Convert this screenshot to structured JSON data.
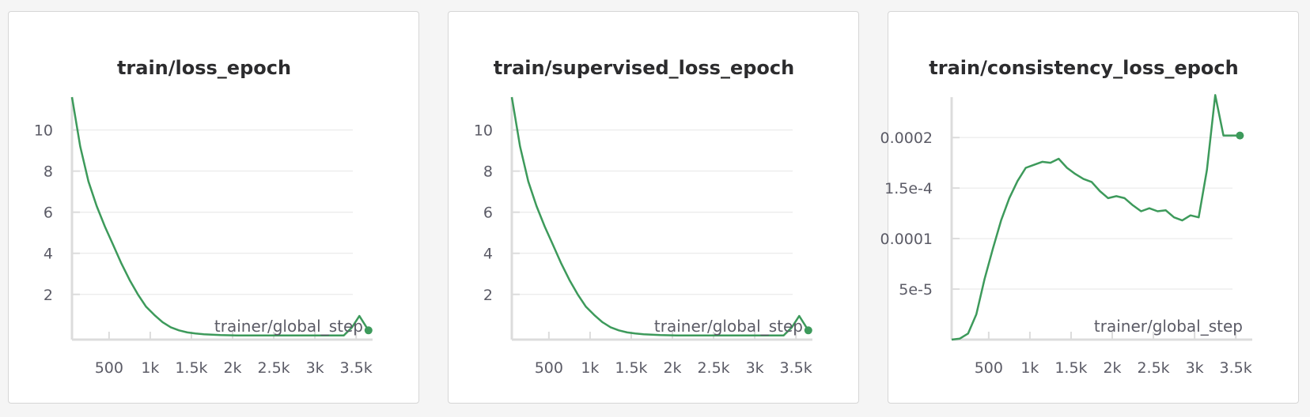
{
  "colors": {
    "series": "#3d9a5b"
  },
  "chart_data": [
    {
      "type": "line",
      "title": "train/loss_epoch",
      "xlabel": "trainer/global_step",
      "xlim": [
        50,
        3700
      ],
      "ylim": [
        -0.2,
        11.6
      ],
      "xticks": [
        500,
        1000,
        1500,
        2000,
        2500,
        3000,
        3500
      ],
      "xtick_labels": [
        "500",
        "1k",
        "1.5k",
        "2k",
        "2.5k",
        "3k",
        "3.5k"
      ],
      "yticks": [
        2,
        4,
        6,
        8,
        10
      ],
      "ytick_labels": [
        "2",
        "4",
        "6",
        "8",
        "10"
      ],
      "series": [
        {
          "x": [
            50,
            150,
            250,
            350,
            450,
            550,
            650,
            750,
            850,
            950,
            1050,
            1150,
            1250,
            1350,
            1450,
            1550,
            1650,
            1750,
            1850,
            1950,
            2050,
            2250,
            2450,
            2650,
            2850,
            3050,
            3250,
            3350,
            3450,
            3540,
            3650
          ],
          "y": [
            11.6,
            9.2,
            7.5,
            6.3,
            5.3,
            4.4,
            3.5,
            2.7,
            2.0,
            1.4,
            1.0,
            0.65,
            0.4,
            0.25,
            0.15,
            0.1,
            0.06,
            0.04,
            0.02,
            0.01,
            0.0,
            0.0,
            0.0,
            0.0,
            0.0,
            0.0,
            0.0,
            0.0,
            0.4,
            0.95,
            0.25
          ]
        }
      ]
    },
    {
      "type": "line",
      "title": "train/supervised_loss_epoch",
      "xlabel": "trainer/global_step",
      "xlim": [
        50,
        3700
      ],
      "ylim": [
        -0.2,
        11.6
      ],
      "xticks": [
        500,
        1000,
        1500,
        2000,
        2500,
        3000,
        3500
      ],
      "xtick_labels": [
        "500",
        "1k",
        "1.5k",
        "2k",
        "2.5k",
        "3k",
        "3.5k"
      ],
      "yticks": [
        2,
        4,
        6,
        8,
        10
      ],
      "ytick_labels": [
        "2",
        "4",
        "6",
        "8",
        "10"
      ],
      "series": [
        {
          "x": [
            50,
            150,
            250,
            350,
            450,
            550,
            650,
            750,
            850,
            950,
            1050,
            1150,
            1250,
            1350,
            1450,
            1550,
            1650,
            1750,
            1850,
            1950,
            2050,
            2250,
            2450,
            2650,
            2850,
            3050,
            3250,
            3350,
            3450,
            3540,
            3650
          ],
          "y": [
            11.6,
            9.2,
            7.5,
            6.3,
            5.3,
            4.4,
            3.5,
            2.7,
            2.0,
            1.4,
            1.0,
            0.65,
            0.4,
            0.25,
            0.15,
            0.1,
            0.06,
            0.04,
            0.02,
            0.01,
            0.0,
            0.0,
            0.0,
            0.0,
            0.0,
            0.0,
            0.0,
            0.0,
            0.4,
            0.95,
            0.25
          ]
        }
      ]
    },
    {
      "type": "line",
      "title": "train/consistency_loss_epoch",
      "xlabel": "trainer/global_step",
      "xlim": [
        50,
        3700
      ],
      "ylim": [
        0,
        0.00024
      ],
      "xticks": [
        500,
        1000,
        1500,
        2000,
        2500,
        3000,
        3500
      ],
      "xtick_labels": [
        "500",
        "1k",
        "1.5k",
        "2k",
        "2.5k",
        "3k",
        "3.5k"
      ],
      "yticks": [
        5e-05,
        0.0001,
        0.00015,
        0.0002
      ],
      "ytick_labels": [
        "5e-5",
        "0.0001",
        "1.5e-4",
        "0.0002"
      ],
      "series": [
        {
          "x": [
            50,
            150,
            250,
            350,
            450,
            550,
            650,
            750,
            850,
            950,
            1050,
            1150,
            1250,
            1350,
            1450,
            1550,
            1650,
            1750,
            1850,
            1950,
            2050,
            2150,
            2250,
            2350,
            2450,
            2550,
            2650,
            2750,
            2850,
            2950,
            3050,
            3150,
            3250,
            3350,
            3450,
            3550
          ],
          "y": [
            0.0,
            1e-06,
            6e-06,
            2.5e-05,
            6e-05,
            9e-05,
            0.000118,
            0.00014,
            0.000157,
            0.00017,
            0.000173,
            0.000176,
            0.000175,
            0.000179,
            0.00017,
            0.000164,
            0.000159,
            0.000156,
            0.000147,
            0.00014,
            0.000142,
            0.00014,
            0.000133,
            0.000127,
            0.00013,
            0.000127,
            0.000128,
            0.000121,
            0.000118,
            0.000123,
            0.000121,
            0.000168,
            0.000242,
            0.000202,
            0.000202,
            0.000202
          ]
        }
      ]
    }
  ]
}
